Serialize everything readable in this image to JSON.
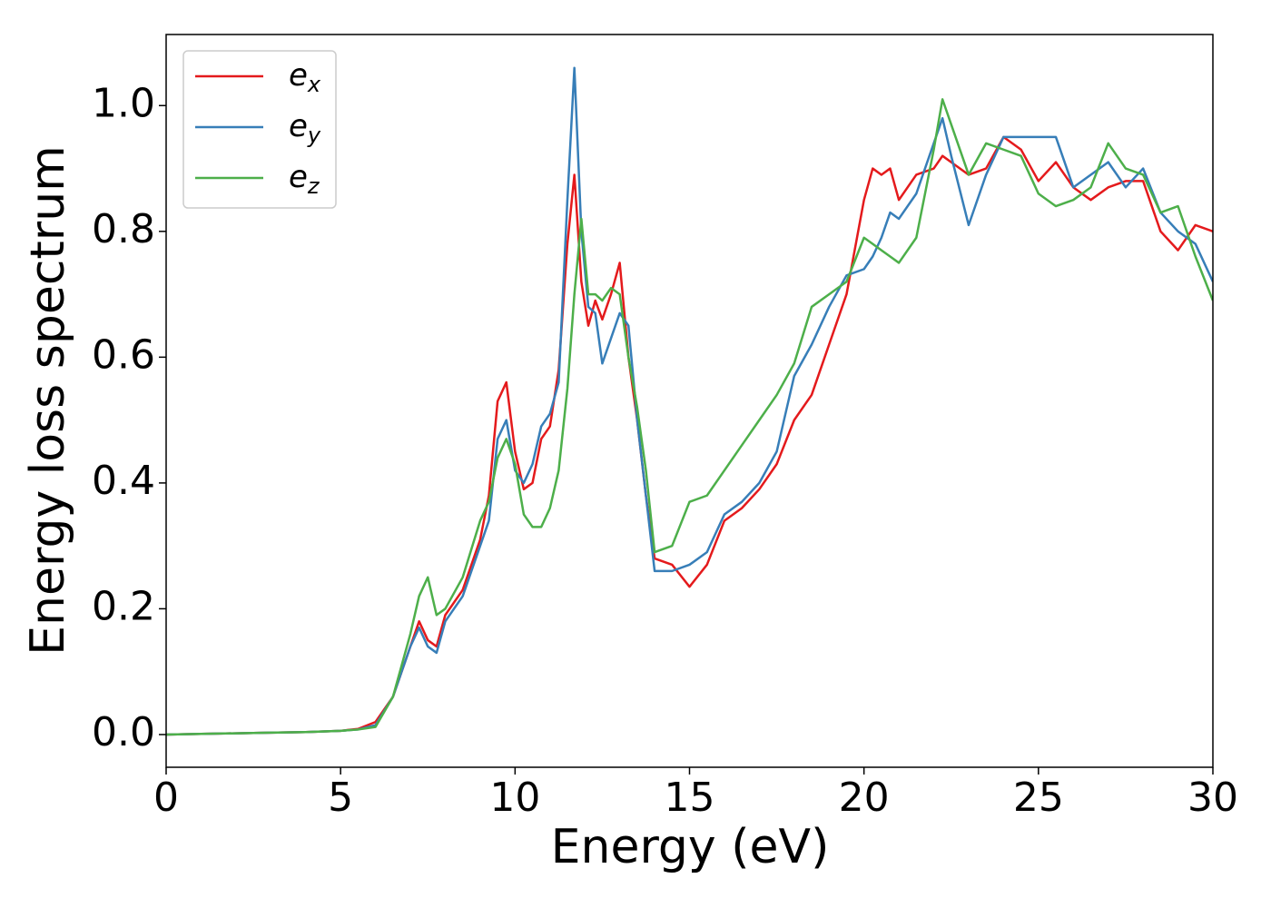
{
  "chart_data": {
    "type": "line",
    "xlabel": "Energy (eV)",
    "ylabel": "Energy loss spectrum",
    "xlim": [
      0,
      30
    ],
    "xticks": [
      0,
      5,
      10,
      15,
      20,
      25,
      30
    ],
    "ylim": [
      -0.052,
      1.113
    ],
    "yticks": [
      {
        "value": 0,
        "label": "0.0"
      },
      0.2,
      0.4,
      0.6,
      0.8,
      {
        "value": 1,
        "label": "1.0"
      }
    ],
    "legend": "upper left",
    "x": [
      0,
      1,
      2,
      3,
      4,
      5,
      5.5,
      6,
      6.5,
      7,
      7.25,
      7.5,
      7.75,
      8,
      8.5,
      9,
      9.25,
      9.5,
      9.75,
      10,
      10.25,
      10.5,
      10.75,
      11,
      11.25,
      11.5,
      11.7,
      11.9,
      12.1,
      12.3,
      12.5,
      12.75,
      13,
      13.25,
      13.5,
      13.75,
      14,
      14.5,
      15,
      15.5,
      16,
      16.5,
      17,
      17.5,
      18,
      18.5,
      19,
      19.5,
      20,
      20.25,
      20.5,
      20.75,
      21,
      21.5,
      22,
      22.25,
      22.5,
      23,
      23.5,
      24,
      24.5,
      25,
      25.5,
      26,
      26.5,
      27,
      27.5,
      28,
      28.5,
      29,
      29.5,
      30
    ],
    "series": [
      {
        "name": "e",
        "subscript": "x",
        "color": "#e41a1c",
        "values": [
          0,
          0.001,
          0.002,
          0.003,
          0.004,
          0.006,
          0.009,
          0.02,
          0.06,
          0.14,
          0.18,
          0.15,
          0.14,
          0.19,
          0.23,
          0.31,
          0.38,
          0.53,
          0.56,
          0.45,
          0.39,
          0.4,
          0.47,
          0.49,
          0.58,
          0.78,
          0.89,
          0.72,
          0.65,
          0.69,
          0.66,
          0.7,
          0.75,
          0.6,
          0.5,
          0.38,
          0.28,
          0.27,
          0.235,
          0.27,
          0.34,
          0.36,
          0.39,
          0.43,
          0.5,
          0.54,
          0.62,
          0.7,
          0.85,
          0.9,
          0.89,
          0.9,
          0.85,
          0.89,
          0.9,
          0.92,
          0.91,
          0.89,
          0.9,
          0.95,
          0.93,
          0.88,
          0.91,
          0.87,
          0.85,
          0.87,
          0.88,
          0.88,
          0.8,
          0.77,
          0.81,
          0.8
        ]
      },
      {
        "name": "e",
        "subscript": "y",
        "color": "#377eb8",
        "values": [
          0,
          0.001,
          0.002,
          0.003,
          0.004,
          0.006,
          0.008,
          0.015,
          0.06,
          0.14,
          0.17,
          0.14,
          0.13,
          0.18,
          0.22,
          0.3,
          0.34,
          0.47,
          0.5,
          0.42,
          0.4,
          0.43,
          0.49,
          0.51,
          0.56,
          0.85,
          1.06,
          0.8,
          0.68,
          0.67,
          0.59,
          0.63,
          0.67,
          0.65,
          0.5,
          0.38,
          0.26,
          0.26,
          0.27,
          0.29,
          0.35,
          0.37,
          0.4,
          0.45,
          0.57,
          0.62,
          0.68,
          0.73,
          0.74,
          0.76,
          0.79,
          0.83,
          0.82,
          0.86,
          0.94,
          0.98,
          0.92,
          0.81,
          0.89,
          0.95,
          0.95,
          0.95,
          0.95,
          0.87,
          0.89,
          0.91,
          0.87,
          0.9,
          0.83,
          0.8,
          0.78,
          0.72
        ]
      },
      {
        "name": "e",
        "subscript": "z",
        "color": "#4daf4a",
        "values": [
          0,
          0.001,
          0.002,
          0.003,
          0.004,
          0.006,
          0.008,
          0.012,
          0.06,
          0.16,
          0.22,
          0.25,
          0.19,
          0.2,
          0.25,
          0.34,
          0.37,
          0.44,
          0.47,
          0.43,
          0.35,
          0.33,
          0.33,
          0.36,
          0.42,
          0.55,
          0.7,
          0.82,
          0.7,
          0.7,
          0.69,
          0.71,
          0.7,
          0.6,
          0.52,
          0.42,
          0.29,
          0.3,
          0.37,
          0.38,
          0.42,
          0.46,
          0.5,
          0.54,
          0.59,
          0.68,
          0.7,
          0.72,
          0.79,
          0.78,
          0.77,
          0.76,
          0.75,
          0.79,
          0.93,
          1.01,
          0.97,
          0.89,
          0.94,
          0.93,
          0.92,
          0.86,
          0.84,
          0.85,
          0.87,
          0.94,
          0.9,
          0.89,
          0.83,
          0.84,
          0.76,
          0.69
        ]
      }
    ]
  }
}
